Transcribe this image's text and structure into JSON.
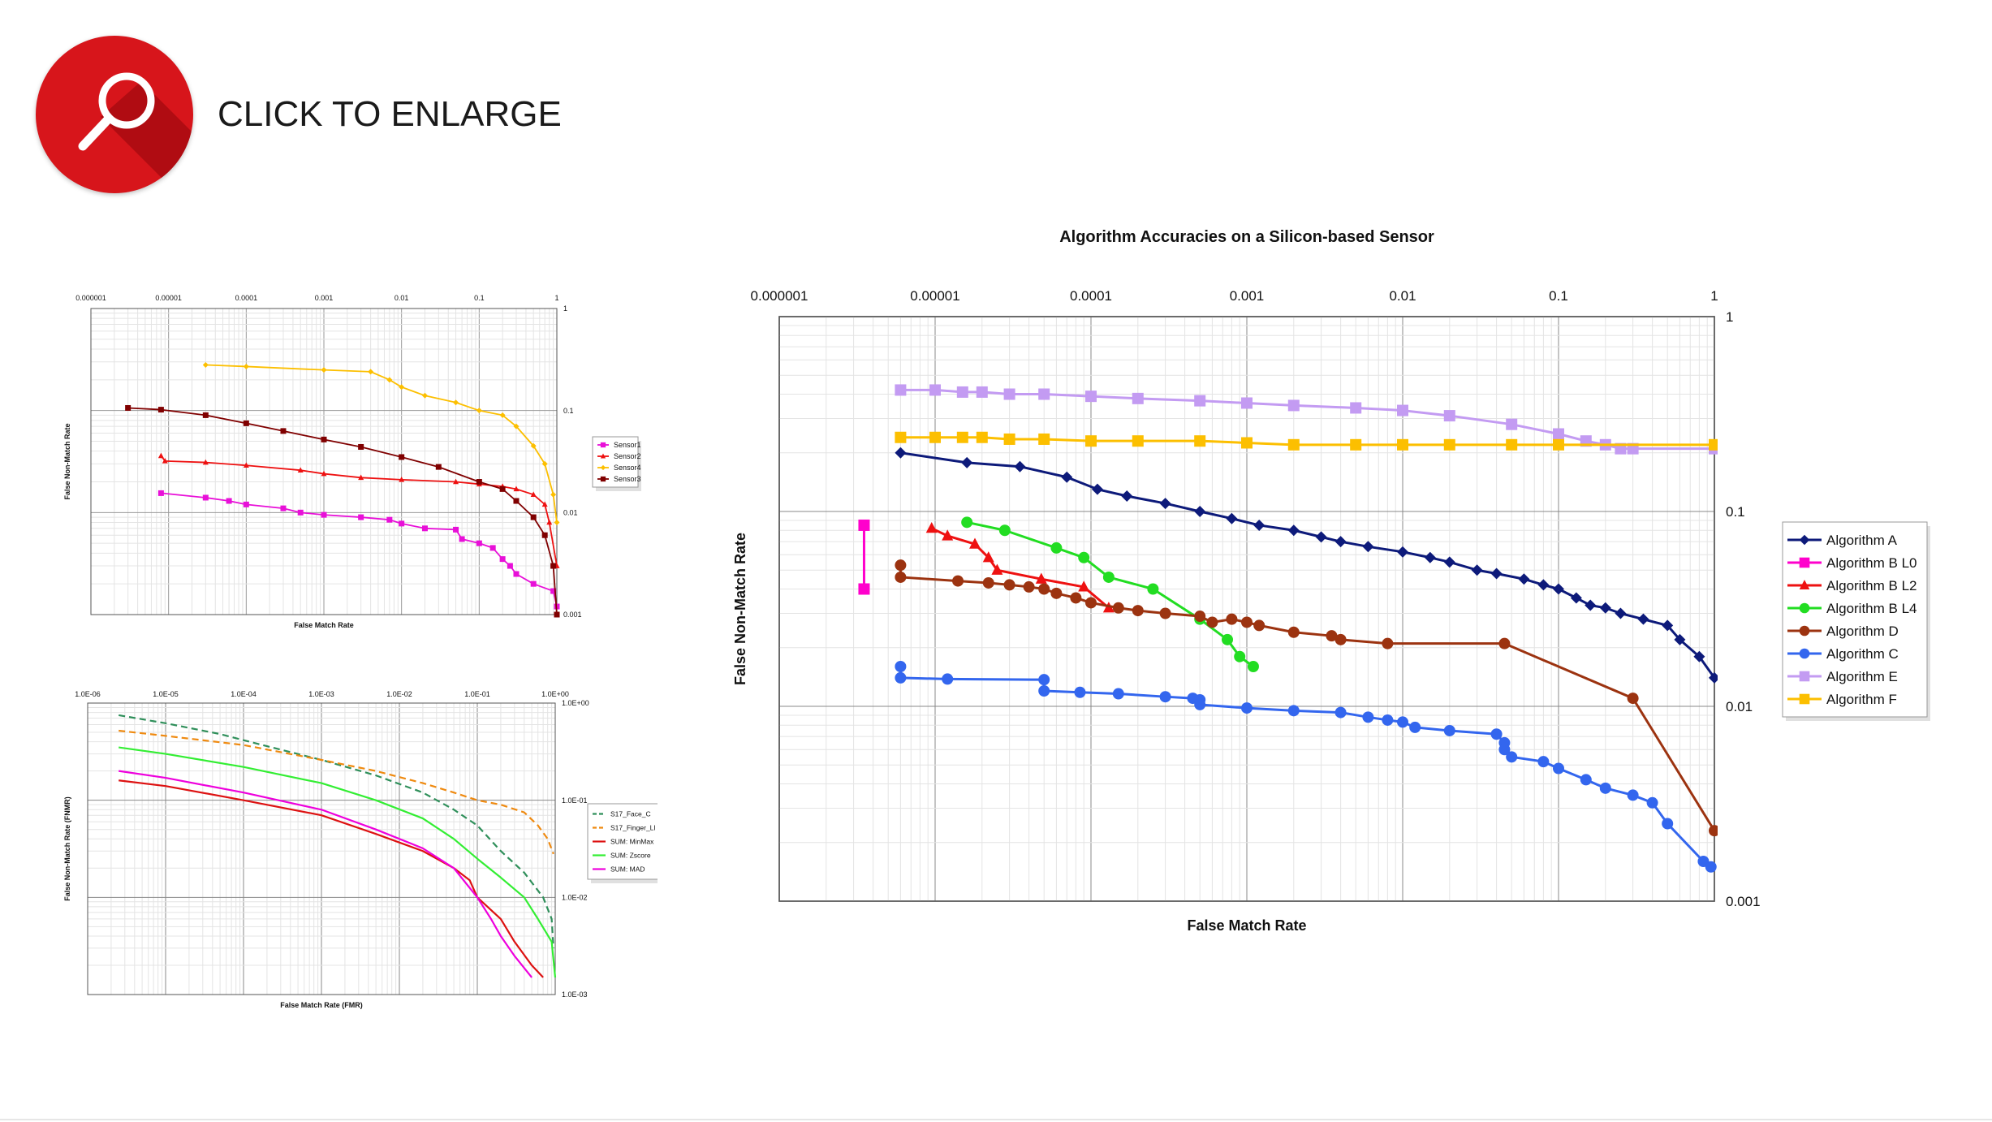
{
  "header": {
    "enlarge_label": "CLICK TO ENLARGE",
    "icon": "magnifier-icon",
    "accent": "#d7151b"
  },
  "chart_data": [
    {
      "id": "main",
      "type": "line",
      "title": "Algorithm Accuracies on a Silicon-based Sensor",
      "xlabel": "False Match Rate",
      "ylabel": "False Non-Match Rate",
      "xscale": "log",
      "yscale": "log",
      "xlim": [
        1e-06,
        1
      ],
      "ylim": [
        0.001,
        1
      ],
      "xticks": [
        "0.000001",
        "0.00001",
        "0.0001",
        "0.001",
        "0.01",
        "0.1",
        "1"
      ],
      "yticks": [
        "1",
        "0.1",
        "0.01",
        "0.001"
      ],
      "grid": true,
      "legend": "right",
      "series": [
        {
          "name": "Algorithm A",
          "color": "#0d1a7a",
          "marker": "diamond",
          "x": [
            6e-06,
            1.6e-05,
            3.5e-05,
            7e-05,
            0.00011,
            0.00017,
            0.0003,
            0.0005,
            0.0008,
            0.0012,
            0.002,
            0.003,
            0.004,
            0.006,
            0.01,
            0.015,
            0.02,
            0.03,
            0.04,
            0.06,
            0.08,
            0.1,
            0.13,
            0.16,
            0.2,
            0.25,
            0.35,
            0.5,
            0.6,
            0.8,
            1.0
          ],
          "y": [
            0.2,
            0.178,
            0.17,
            0.15,
            0.13,
            0.12,
            0.11,
            0.1,
            0.092,
            0.085,
            0.08,
            0.074,
            0.07,
            0.066,
            0.062,
            0.058,
            0.055,
            0.05,
            0.048,
            0.045,
            0.042,
            0.04,
            0.036,
            0.033,
            0.032,
            0.03,
            0.028,
            0.026,
            0.022,
            0.018,
            0.014
          ]
        },
        {
          "name": "Algorithm B L0",
          "color": "#ff00cc",
          "marker": "square",
          "x": [
            3.5e-06,
            3.5e-06
          ],
          "y": [
            0.085,
            0.04
          ]
        },
        {
          "name": "Algorithm B L2",
          "color": "#ee1111",
          "marker": "triangle",
          "x": [
            9.5e-06,
            1.2e-05,
            1.8e-05,
            2.2e-05,
            2.5e-05,
            4.8e-05,
            9e-05,
            0.00013
          ],
          "y": [
            0.082,
            0.075,
            0.068,
            0.058,
            0.05,
            0.045,
            0.041,
            0.032
          ]
        },
        {
          "name": "Algorithm B L4",
          "color": "#22dd22",
          "marker": "circle",
          "x": [
            1.6e-05,
            2.8e-05,
            6e-05,
            9e-05,
            0.00013,
            0.00025,
            0.0005,
            0.00075,
            0.0009,
            0.0011
          ],
          "y": [
            0.088,
            0.08,
            0.065,
            0.058,
            0.046,
            0.04,
            0.028,
            0.022,
            0.018,
            0.016
          ]
        },
        {
          "name": "Algorithm D",
          "color": "#9c3310",
          "marker": "circle",
          "x": [
            6e-06,
            6e-06,
            1.4e-05,
            2.2e-05,
            3e-05,
            4e-05,
            5e-05,
            6e-05,
            8e-05,
            0.0001,
            0.00015,
            0.0002,
            0.0003,
            0.0005,
            0.0006,
            0.0008,
            0.001,
            0.0012,
            0.002,
            0.0035,
            0.004,
            0.008,
            0.045,
            0.3,
            1.0
          ],
          "y": [
            0.053,
            0.046,
            0.044,
            0.043,
            0.042,
            0.041,
            0.04,
            0.038,
            0.036,
            0.034,
            0.032,
            0.031,
            0.03,
            0.029,
            0.027,
            0.028,
            0.027,
            0.026,
            0.024,
            0.023,
            0.022,
            0.021,
            0.021,
            0.011,
            0.0023
          ]
        },
        {
          "name": "Algorithm C",
          "color": "#3366ee",
          "marker": "circle",
          "x": [
            6e-06,
            6e-06,
            1.2e-05,
            5e-05,
            5e-05,
            8.5e-05,
            0.00015,
            0.0003,
            0.00045,
            0.0005,
            0.0005,
            0.001,
            0.002,
            0.004,
            0.006,
            0.008,
            0.01,
            0.012,
            0.02,
            0.04,
            0.045,
            0.045,
            0.05,
            0.08,
            0.1,
            0.15,
            0.2,
            0.3,
            0.4,
            0.5,
            0.85,
            0.95
          ],
          "y": [
            0.016,
            0.014,
            0.0138,
            0.0137,
            0.012,
            0.0118,
            0.0116,
            0.0112,
            0.011,
            0.0108,
            0.0102,
            0.0098,
            0.0095,
            0.0093,
            0.0088,
            0.0085,
            0.0083,
            0.0078,
            0.0075,
            0.0072,
            0.0065,
            0.006,
            0.0055,
            0.0052,
            0.0048,
            0.0042,
            0.0038,
            0.0035,
            0.0032,
            0.0025,
            0.0016,
            0.0015
          ]
        },
        {
          "name": "Algorithm E",
          "color": "#c39bf2",
          "marker": "square",
          "x": [
            6e-06,
            1e-05,
            1.5e-05,
            2e-05,
            3e-05,
            5e-05,
            0.0001,
            0.0002,
            0.0005,
            0.001,
            0.002,
            0.005,
            0.01,
            0.02,
            0.05,
            0.1,
            0.15,
            0.2,
            0.25,
            0.3,
            1.0
          ],
          "y": [
            0.42,
            0.42,
            0.41,
            0.41,
            0.4,
            0.4,
            0.39,
            0.38,
            0.37,
            0.36,
            0.35,
            0.34,
            0.33,
            0.31,
            0.28,
            0.25,
            0.23,
            0.22,
            0.21,
            0.21,
            0.21
          ]
        },
        {
          "name": "Algorithm F",
          "color": "#fcbf00",
          "marker": "square",
          "x": [
            6e-06,
            1e-05,
            1.5e-05,
            2e-05,
            3e-05,
            5e-05,
            0.0001,
            0.0002,
            0.0005,
            0.001,
            0.002,
            0.005,
            0.01,
            0.02,
            0.05,
            0.1,
            1.0
          ],
          "y": [
            0.24,
            0.24,
            0.24,
            0.24,
            0.235,
            0.235,
            0.23,
            0.23,
            0.23,
            0.225,
            0.22,
            0.22,
            0.22,
            0.22,
            0.22,
            0.22,
            0.22
          ]
        }
      ]
    },
    {
      "id": "top-left",
      "type": "line",
      "title": "",
      "xlabel": "False Match Rate",
      "ylabel": "False Non-Match Rate",
      "xscale": "log",
      "yscale": "log",
      "xlim": [
        1e-06,
        1
      ],
      "ylim": [
        0.001,
        1
      ],
      "xticks": [
        "0.000001",
        "0.00001",
        "0.0001",
        "0.001",
        "0.01",
        "0.1",
        "1"
      ],
      "yticks": [
        "1",
        "0.1",
        "0.01",
        "0.001"
      ],
      "grid": true,
      "legend": "right",
      "series": [
        {
          "name": "Sensor1",
          "color": "#e810d8",
          "marker": "square",
          "x": [
            8e-06,
            3e-05,
            6e-05,
            0.0001,
            0.0003,
            0.0005,
            0.001,
            0.003,
            0.007,
            0.01,
            0.02,
            0.05,
            0.06,
            0.1,
            0.15,
            0.2,
            0.25,
            0.3,
            0.5,
            0.9,
            1.0
          ],
          "y": [
            0.0155,
            0.014,
            0.013,
            0.012,
            0.011,
            0.01,
            0.0095,
            0.009,
            0.0085,
            0.0078,
            0.007,
            0.0068,
            0.0055,
            0.005,
            0.0045,
            0.0035,
            0.003,
            0.0025,
            0.002,
            0.0017,
            0.0012
          ]
        },
        {
          "name": "Sensor2",
          "color": "#ee1111",
          "marker": "triangle",
          "x": [
            8e-06,
            9e-06,
            3e-05,
            0.0001,
            0.0005,
            0.001,
            0.003,
            0.01,
            0.05,
            0.1,
            0.2,
            0.3,
            0.5,
            0.7,
            0.8,
            1.0
          ],
          "y": [
            0.036,
            0.032,
            0.031,
            0.029,
            0.026,
            0.024,
            0.022,
            0.021,
            0.02,
            0.019,
            0.018,
            0.017,
            0.015,
            0.012,
            0.008,
            0.003
          ]
        },
        {
          "name": "Sensor4",
          "color": "#fcbf00",
          "marker": "diamond",
          "x": [
            3e-05,
            0.0001,
            0.001,
            0.004,
            0.007,
            0.01,
            0.02,
            0.05,
            0.1,
            0.2,
            0.3,
            0.5,
            0.7,
            0.9,
            1.0
          ],
          "y": [
            0.28,
            0.27,
            0.25,
            0.24,
            0.2,
            0.17,
            0.14,
            0.12,
            0.1,
            0.09,
            0.07,
            0.045,
            0.03,
            0.015,
            0.008
          ]
        },
        {
          "name": "Sensor3",
          "color": "#800000",
          "marker": "square",
          "x": [
            3e-06,
            8e-06,
            3e-05,
            0.0001,
            0.0003,
            0.001,
            0.003,
            0.01,
            0.03,
            0.1,
            0.2,
            0.3,
            0.5,
            0.7,
            0.9,
            1.0
          ],
          "y": [
            0.106,
            0.102,
            0.09,
            0.075,
            0.063,
            0.052,
            0.044,
            0.035,
            0.028,
            0.02,
            0.017,
            0.013,
            0.009,
            0.006,
            0.003,
            0.001
          ]
        }
      ]
    },
    {
      "id": "bottom-left",
      "type": "line",
      "title": "",
      "xlabel": "False Match Rate (FMR)",
      "ylabel": "False Non-Match Rate (FNMR)",
      "xscale": "log",
      "yscale": "log",
      "xlim": [
        1e-06,
        1
      ],
      "ylim": [
        0.001,
        1
      ],
      "xticks": [
        "1.0E-06",
        "1.0E-05",
        "1.0E-04",
        "1.0E-03",
        "1.0E-02",
        "1.0E-01",
        "1.0E+00"
      ],
      "yticks": [
        "1.0E+00",
        "1.0E-01",
        "1.0E-02",
        "1.0E-03"
      ],
      "grid": true,
      "legend": "right",
      "series": [
        {
          "name": "S17_Face_C",
          "color": "#2f8f5a",
          "dash": true,
          "x": [
            2.5e-06,
            1e-05,
            5e-05,
            0.0002,
            0.001,
            0.005,
            0.02,
            0.05,
            0.1,
            0.2,
            0.4,
            0.7,
            0.9,
            0.95
          ],
          "y": [
            0.75,
            0.62,
            0.48,
            0.36,
            0.26,
            0.18,
            0.12,
            0.08,
            0.055,
            0.03,
            0.018,
            0.01,
            0.006,
            0.003
          ]
        },
        {
          "name": "S17_Finger_LI",
          "color": "#ef8a10",
          "dash": true,
          "x": [
            2.5e-06,
            1e-05,
            0.0001,
            0.001,
            0.005,
            0.02,
            0.05,
            0.1,
            0.2,
            0.4,
            0.6,
            0.8,
            0.95
          ],
          "y": [
            0.52,
            0.46,
            0.37,
            0.26,
            0.2,
            0.15,
            0.12,
            0.1,
            0.09,
            0.075,
            0.055,
            0.04,
            0.028
          ]
        },
        {
          "name": "SUM: MinMax",
          "color": "#dd1111",
          "dash": false,
          "x": [
            2.5e-06,
            1e-05,
            0.0001,
            0.001,
            0.005,
            0.02,
            0.05,
            0.08,
            0.1,
            0.2,
            0.3,
            0.5,
            0.7
          ],
          "y": [
            0.16,
            0.14,
            0.1,
            0.07,
            0.045,
            0.03,
            0.02,
            0.015,
            0.01,
            0.006,
            0.0035,
            0.002,
            0.0015
          ]
        },
        {
          "name": "SUM: Zscore",
          "color": "#33ee33",
          "dash": false,
          "x": [
            2.5e-06,
            1e-05,
            0.0001,
            0.001,
            0.005,
            0.02,
            0.05,
            0.1,
            0.2,
            0.4,
            0.6,
            0.9,
            1.0
          ],
          "y": [
            0.35,
            0.3,
            0.22,
            0.15,
            0.1,
            0.065,
            0.04,
            0.025,
            0.016,
            0.01,
            0.006,
            0.0035,
            0.0015
          ]
        },
        {
          "name": "SUM: MAD",
          "color": "#ee00dd",
          "dash": false,
          "x": [
            2.5e-06,
            1e-05,
            0.0001,
            0.001,
            0.005,
            0.02,
            0.05,
            0.1,
            0.15,
            0.2,
            0.3,
            0.5
          ],
          "y": [
            0.2,
            0.17,
            0.12,
            0.08,
            0.05,
            0.032,
            0.02,
            0.01,
            0.006,
            0.004,
            0.0025,
            0.0015
          ]
        }
      ]
    }
  ]
}
